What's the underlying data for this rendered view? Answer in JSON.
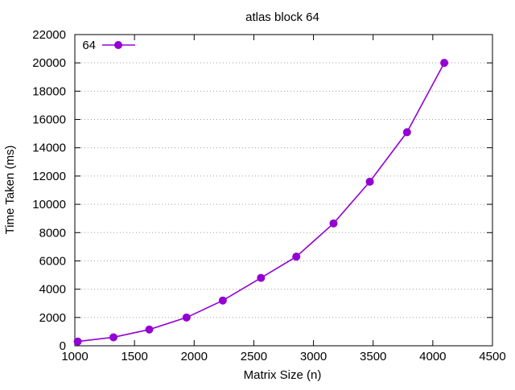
{
  "chart_data": {
    "type": "line",
    "title": "atlas block 64",
    "xlabel": "Matrix Size (n)",
    "ylabel": "Time Taken (ms)",
    "xlim": [
      1000,
      4500
    ],
    "ylim": [
      0,
      22000
    ],
    "xticks": [
      "1000",
      "1500",
      "2000",
      "2500",
      "3000",
      "3500",
      "4000",
      "4500"
    ],
    "yticks": [
      "0",
      "2000",
      "4000",
      "6000",
      "8000",
      "10000",
      "12000",
      "14000",
      "16000",
      "18000",
      "20000",
      "22000"
    ],
    "grid": true,
    "grid_style": "dotted",
    "legend_position": "top-left",
    "series": [
      {
        "name": "64",
        "color": "#9400d3",
        "x": [
          1024,
          1324,
          1624,
          1936,
          2240,
          2560,
          2856,
          3168,
          3472,
          3784,
          4096
        ],
        "y": [
          300,
          600,
          1150,
          2000,
          3200,
          4800,
          6300,
          8650,
          11600,
          15100,
          20000
        ]
      }
    ]
  }
}
